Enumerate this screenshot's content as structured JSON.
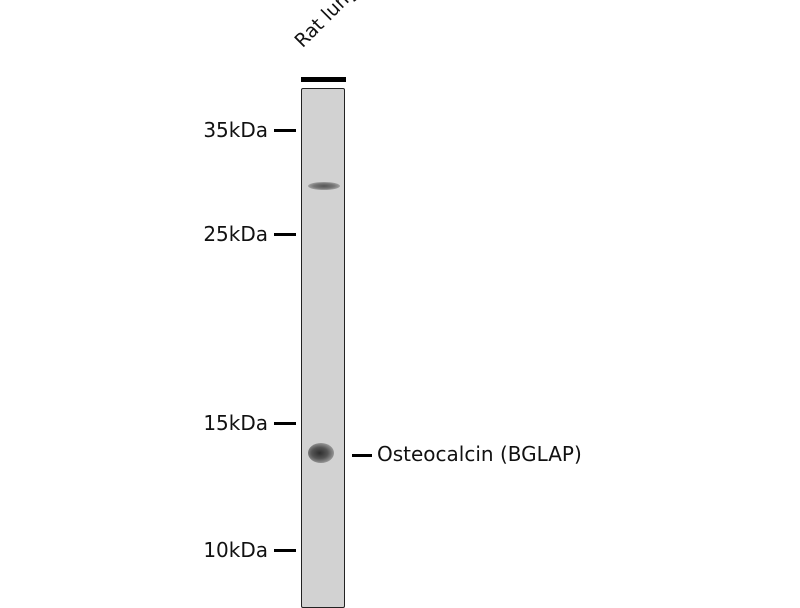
{
  "lane": {
    "label": "Rat lung"
  },
  "markers": [
    {
      "label": "35kDa",
      "kda": 35
    },
    {
      "label": "25kDa",
      "kda": 25
    },
    {
      "label": "15kDa",
      "kda": 15
    },
    {
      "label": "10kDa",
      "kda": 10
    }
  ],
  "target": {
    "label": "Osteocalcin (BGLAP)"
  },
  "colors": {
    "membrane": "#d2d2d2",
    "band": "#3a3a3a"
  }
}
